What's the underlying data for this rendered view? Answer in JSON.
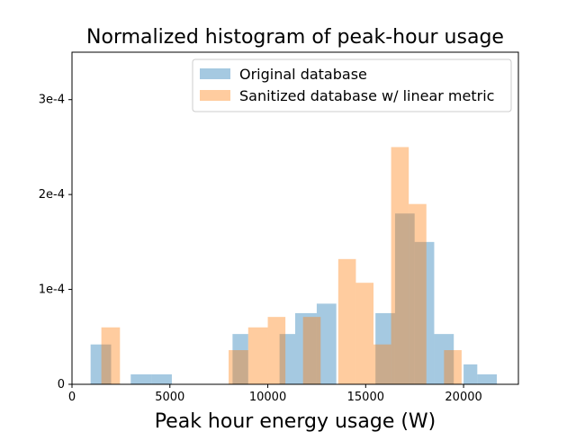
{
  "chart_data": {
    "type": "histogram",
    "title": "Normalized histogram of peak-hour usage",
    "xlabel": "Peak hour energy usage (W)",
    "ylabel": "",
    "xlim": [
      0,
      22800
    ],
    "ylim": [
      0,
      0.00035
    ],
    "x_ticks": [
      {
        "value": 0,
        "label": "0"
      },
      {
        "value": 5000,
        "label": "5000"
      },
      {
        "value": 10000,
        "label": "10000"
      },
      {
        "value": 15000,
        "label": "15000"
      },
      {
        "value": 20000,
        "label": "20000"
      }
    ],
    "y_ticks": [
      {
        "value": 0,
        "label": "0"
      },
      {
        "value": 0.0001,
        "label": "1e-4"
      },
      {
        "value": 0.0002,
        "label": "2e-4"
      },
      {
        "value": 0.0003,
        "label": "3e-4"
      }
    ],
    "grid": false,
    "legend_position": "top-right",
    "series": [
      {
        "name": "Original database",
        "color": "#1f77b4",
        "opacity": 0.4,
        "bins": [
          {
            "x0": 950,
            "x1": 2000,
            "y": 4.2e-05
          },
          {
            "x0": 3000,
            "x1": 4050,
            "y": 1.05e-05
          },
          {
            "x0": 4050,
            "x1": 5100,
            "y": 1.05e-05
          },
          {
            "x0": 8200,
            "x1": 9000,
            "y": 5.3e-05
          },
          {
            "x0": 10600,
            "x1": 11400,
            "y": 5.3e-05
          },
          {
            "x0": 11400,
            "x1": 12500,
            "y": 7.5e-05
          },
          {
            "x0": 12500,
            "x1": 13500,
            "y": 8.5e-05
          },
          {
            "x0": 15500,
            "x1": 16500,
            "y": 7.5e-05
          },
          {
            "x0": 16500,
            "x1": 17500,
            "y": 0.00018
          },
          {
            "x0": 17500,
            "x1": 18500,
            "y": 0.00015
          },
          {
            "x0": 18500,
            "x1": 19500,
            "y": 5.3e-05
          },
          {
            "x0": 20000,
            "x1": 20700,
            "y": 2.1e-05
          },
          {
            "x0": 20700,
            "x1": 21700,
            "y": 1.05e-05
          }
        ]
      },
      {
        "name": "Sanitized database w/ linear metric",
        "color": "#ff7f0e",
        "opacity": 0.4,
        "bins": [
          {
            "x0": 1500,
            "x1": 2450,
            "y": 6e-05
          },
          {
            "x0": 8000,
            "x1": 9000,
            "y": 3.6e-05
          },
          {
            "x0": 9000,
            "x1": 10000,
            "y": 6e-05
          },
          {
            "x0": 10000,
            "x1": 10900,
            "y": 7.1e-05
          },
          {
            "x0": 11800,
            "x1": 12700,
            "y": 7.1e-05
          },
          {
            "x0": 13600,
            "x1": 14500,
            "y": 0.000132
          },
          {
            "x0": 14500,
            "x1": 15400,
            "y": 0.000107
          },
          {
            "x0": 15400,
            "x1": 16300,
            "y": 4.2e-05
          },
          {
            "x0": 16300,
            "x1": 17200,
            "y": 0.00025
          },
          {
            "x0": 17200,
            "x1": 18100,
            "y": 0.00019
          },
          {
            "x0": 19000,
            "x1": 19900,
            "y": 3.6e-05
          }
        ]
      }
    ]
  }
}
